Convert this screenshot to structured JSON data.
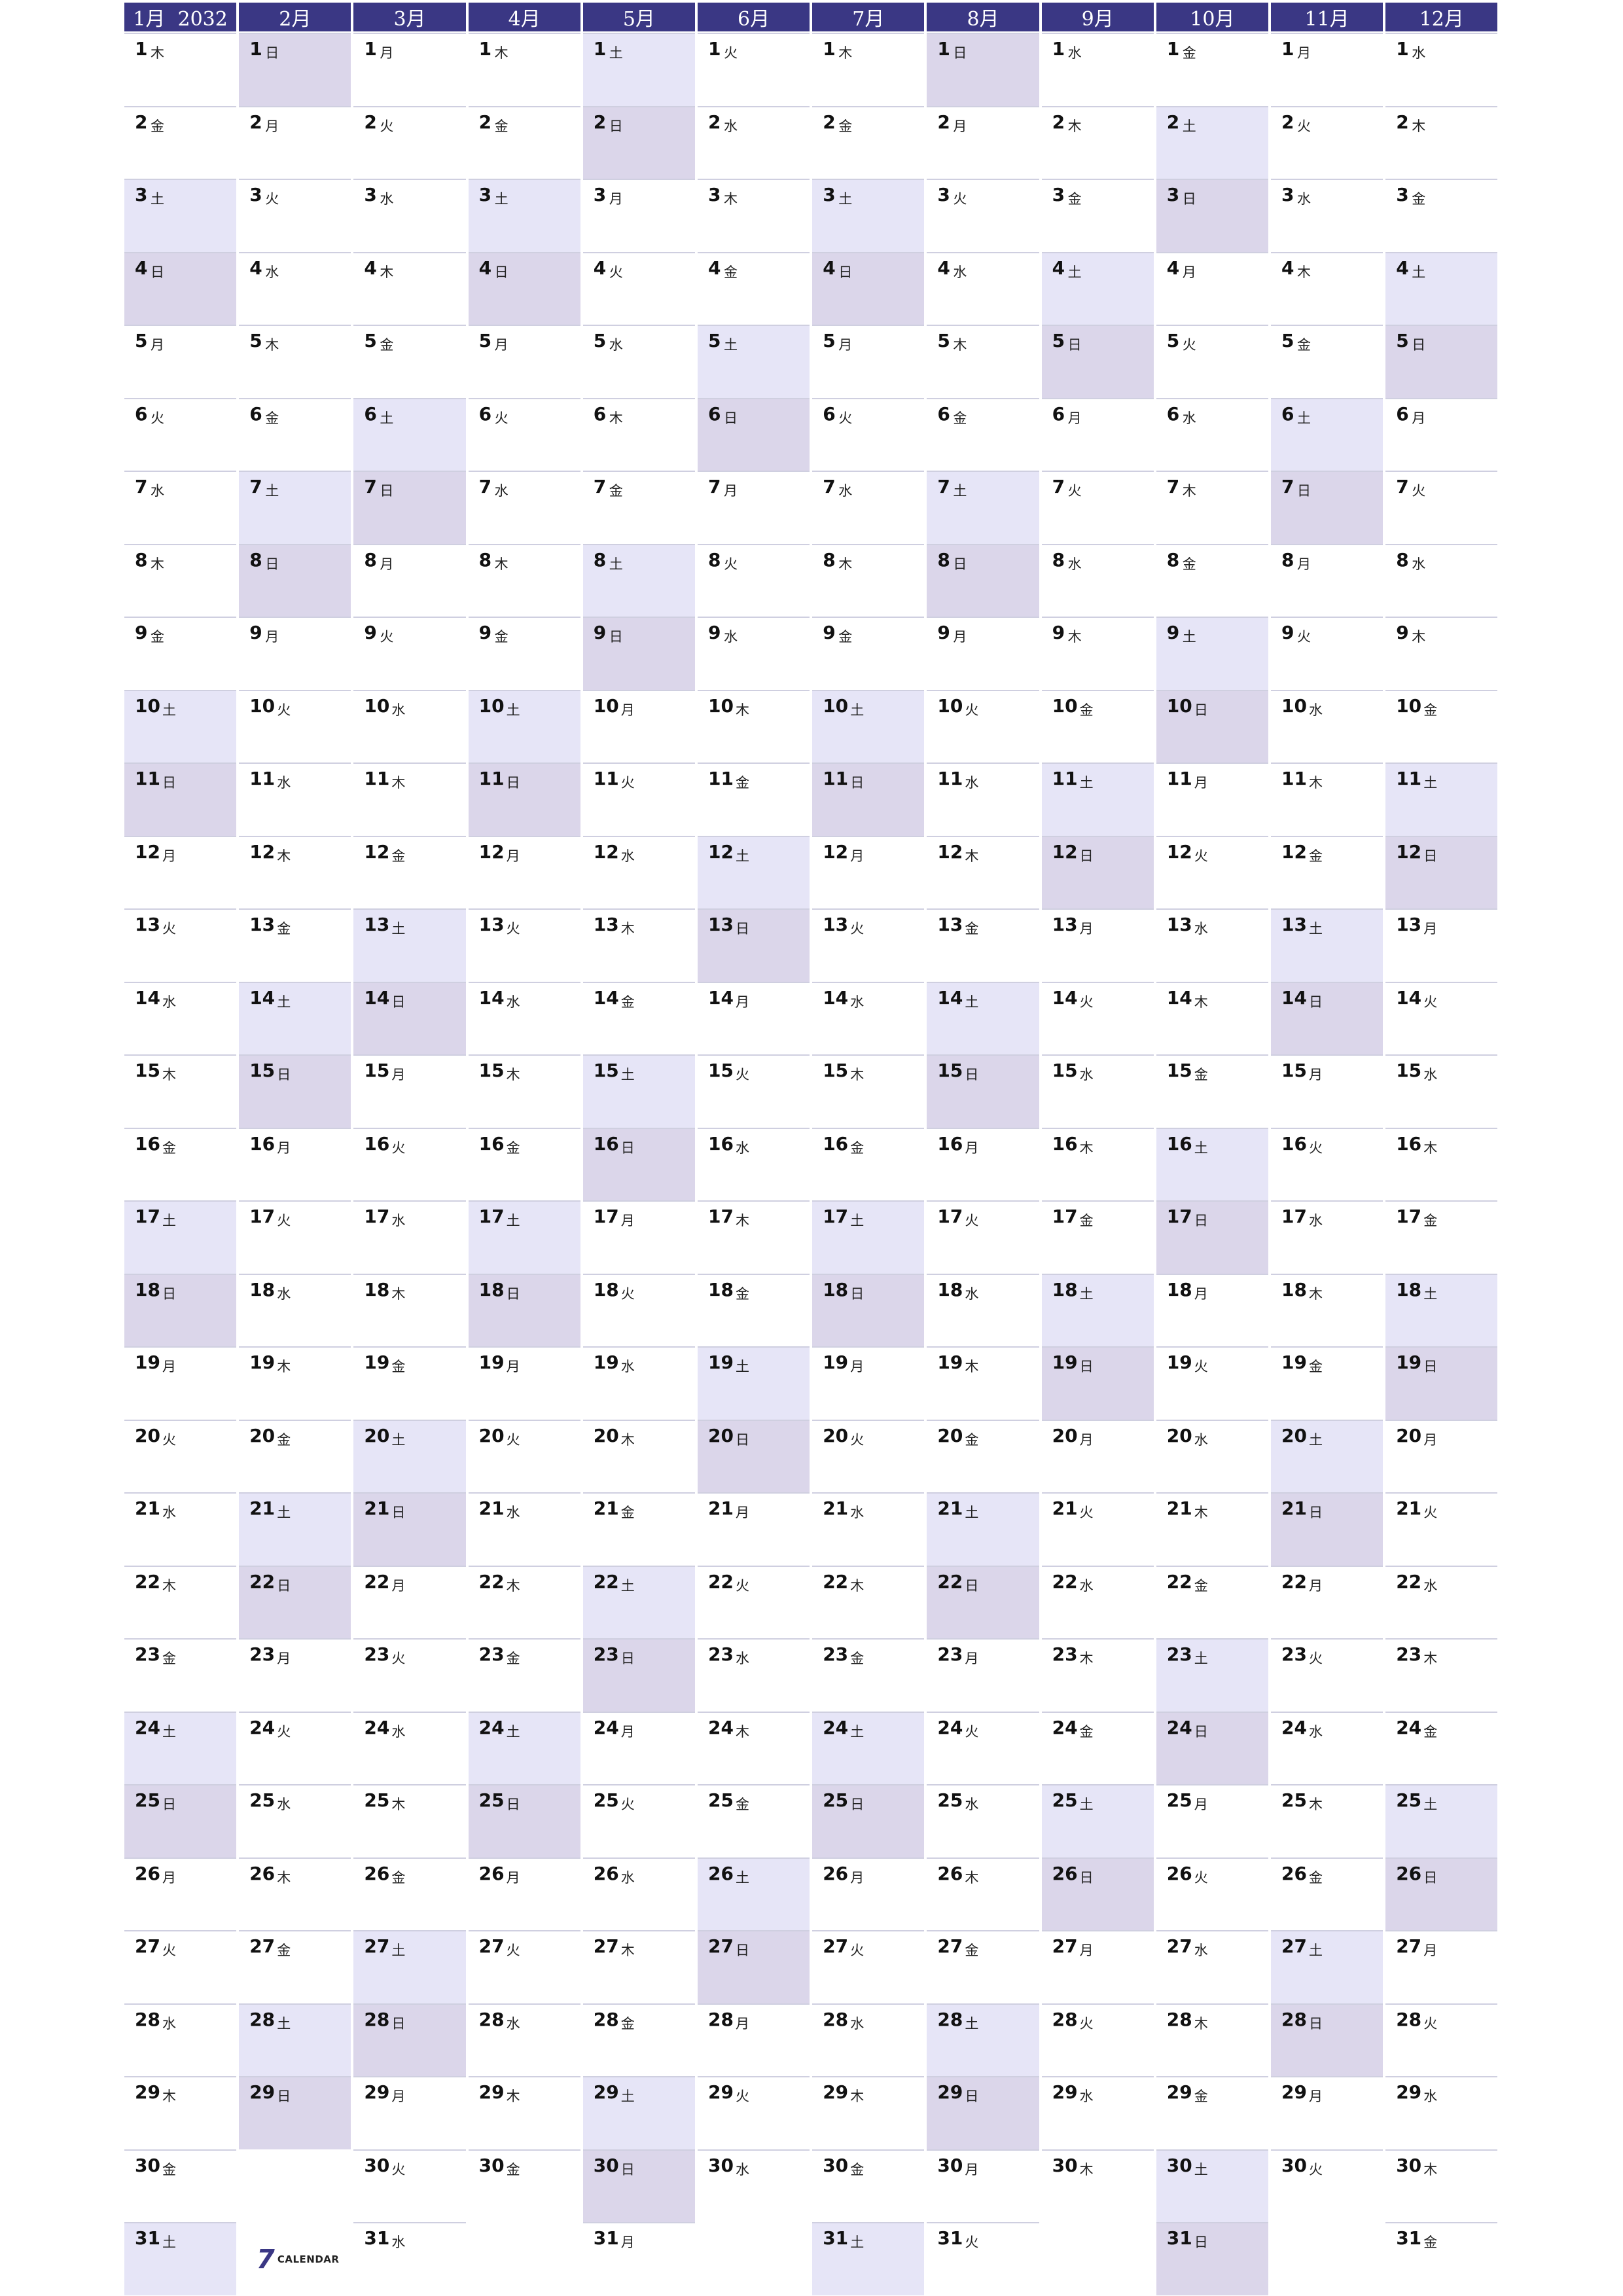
{
  "year": "2032",
  "months": [
    {
      "label": "1月  2032",
      "days": 31,
      "weekdays": [
        "木",
        "金",
        "土",
        "日",
        "月",
        "火",
        "水",
        "木",
        "金",
        "土",
        "日",
        "月",
        "火",
        "水",
        "木",
        "金",
        "土",
        "日",
        "月",
        "火",
        "水",
        "木",
        "金",
        "土",
        "日",
        "月",
        "火",
        "水",
        "木",
        "金",
        "土"
      ]
    },
    {
      "label": "2月",
      "days": 29,
      "weekdays": [
        "日",
        "月",
        "火",
        "水",
        "木",
        "金",
        "土",
        "日",
        "月",
        "火",
        "水",
        "木",
        "金",
        "土",
        "日",
        "月",
        "火",
        "水",
        "木",
        "金",
        "土",
        "日",
        "月",
        "火",
        "水",
        "木",
        "金",
        "土",
        "日"
      ]
    },
    {
      "label": "3月",
      "days": 31,
      "weekdays": [
        "月",
        "火",
        "水",
        "木",
        "金",
        "土",
        "日",
        "月",
        "火",
        "水",
        "木",
        "金",
        "土",
        "日",
        "月",
        "火",
        "水",
        "木",
        "金",
        "土",
        "日",
        "月",
        "火",
        "水",
        "木",
        "金",
        "土",
        "日",
        "月",
        "火",
        "水"
      ]
    },
    {
      "label": "4月",
      "days": 30,
      "weekdays": [
        "木",
        "金",
        "土",
        "日",
        "月",
        "火",
        "水",
        "木",
        "金",
        "土",
        "日",
        "月",
        "火",
        "水",
        "木",
        "金",
        "土",
        "日",
        "月",
        "火",
        "水",
        "木",
        "金",
        "土",
        "日",
        "月",
        "火",
        "水",
        "木",
        "金"
      ]
    },
    {
      "label": "5月",
      "days": 31,
      "weekdays": [
        "土",
        "日",
        "月",
        "火",
        "水",
        "木",
        "金",
        "土",
        "日",
        "月",
        "火",
        "水",
        "木",
        "金",
        "土",
        "日",
        "月",
        "火",
        "水",
        "木",
        "金",
        "土",
        "日",
        "月",
        "火",
        "水",
        "木",
        "金",
        "土",
        "日",
        "月"
      ]
    },
    {
      "label": "6月",
      "days": 30,
      "weekdays": [
        "火",
        "水",
        "木",
        "金",
        "土",
        "日",
        "月",
        "火",
        "水",
        "木",
        "金",
        "土",
        "日",
        "月",
        "火",
        "水",
        "木",
        "金",
        "土",
        "日",
        "月",
        "火",
        "水",
        "木",
        "金",
        "土",
        "日",
        "月",
        "火",
        "水"
      ]
    },
    {
      "label": "7月",
      "days": 31,
      "weekdays": [
        "木",
        "金",
        "土",
        "日",
        "月",
        "火",
        "水",
        "木",
        "金",
        "土",
        "日",
        "月",
        "火",
        "水",
        "木",
        "金",
        "土",
        "日",
        "月",
        "火",
        "水",
        "木",
        "金",
        "土",
        "日",
        "月",
        "火",
        "水",
        "木",
        "金",
        "土"
      ]
    },
    {
      "label": "8月",
      "days": 31,
      "weekdays": [
        "日",
        "月",
        "火",
        "水",
        "木",
        "金",
        "土",
        "日",
        "月",
        "火",
        "水",
        "木",
        "金",
        "土",
        "日",
        "月",
        "火",
        "水",
        "木",
        "金",
        "土",
        "日",
        "月",
        "火",
        "水",
        "木",
        "金",
        "土",
        "日",
        "月",
        "火"
      ]
    },
    {
      "label": "9月",
      "days": 30,
      "weekdays": [
        "水",
        "木",
        "金",
        "土",
        "日",
        "月",
        "火",
        "水",
        "木",
        "金",
        "土",
        "日",
        "月",
        "火",
        "水",
        "木",
        "金",
        "土",
        "日",
        "月",
        "火",
        "水",
        "木",
        "金",
        "土",
        "日",
        "月",
        "火",
        "水",
        "木"
      ]
    },
    {
      "label": "10月",
      "days": 31,
      "weekdays": [
        "金",
        "土",
        "日",
        "月",
        "火",
        "水",
        "木",
        "金",
        "土",
        "日",
        "月",
        "火",
        "水",
        "木",
        "金",
        "土",
        "日",
        "月",
        "火",
        "水",
        "木",
        "金",
        "土",
        "日",
        "月",
        "火",
        "水",
        "木",
        "金",
        "土",
        "日"
      ]
    },
    {
      "label": "11月",
      "days": 30,
      "weekdays": [
        "月",
        "火",
        "水",
        "木",
        "金",
        "土",
        "日",
        "月",
        "火",
        "水",
        "木",
        "金",
        "土",
        "日",
        "月",
        "火",
        "水",
        "木",
        "金",
        "土",
        "日",
        "月",
        "火",
        "水",
        "木",
        "金",
        "土",
        "日",
        "月",
        "火"
      ]
    },
    {
      "label": "12月",
      "days": 31,
      "weekdays": [
        "水",
        "木",
        "金",
        "土",
        "日",
        "月",
        "火",
        "水",
        "木",
        "金",
        "土",
        "日",
        "月",
        "火",
        "水",
        "木",
        "金",
        "土",
        "日",
        "月",
        "火",
        "水",
        "木",
        "金",
        "土",
        "日",
        "月",
        "火",
        "水",
        "木",
        "金"
      ]
    }
  ],
  "colors": {
    "header": "#3a3784",
    "saturday": "#e6e5f7",
    "sunday": "#dbd6ea"
  },
  "logo": {
    "mark": "7",
    "text": "CALENDAR"
  }
}
